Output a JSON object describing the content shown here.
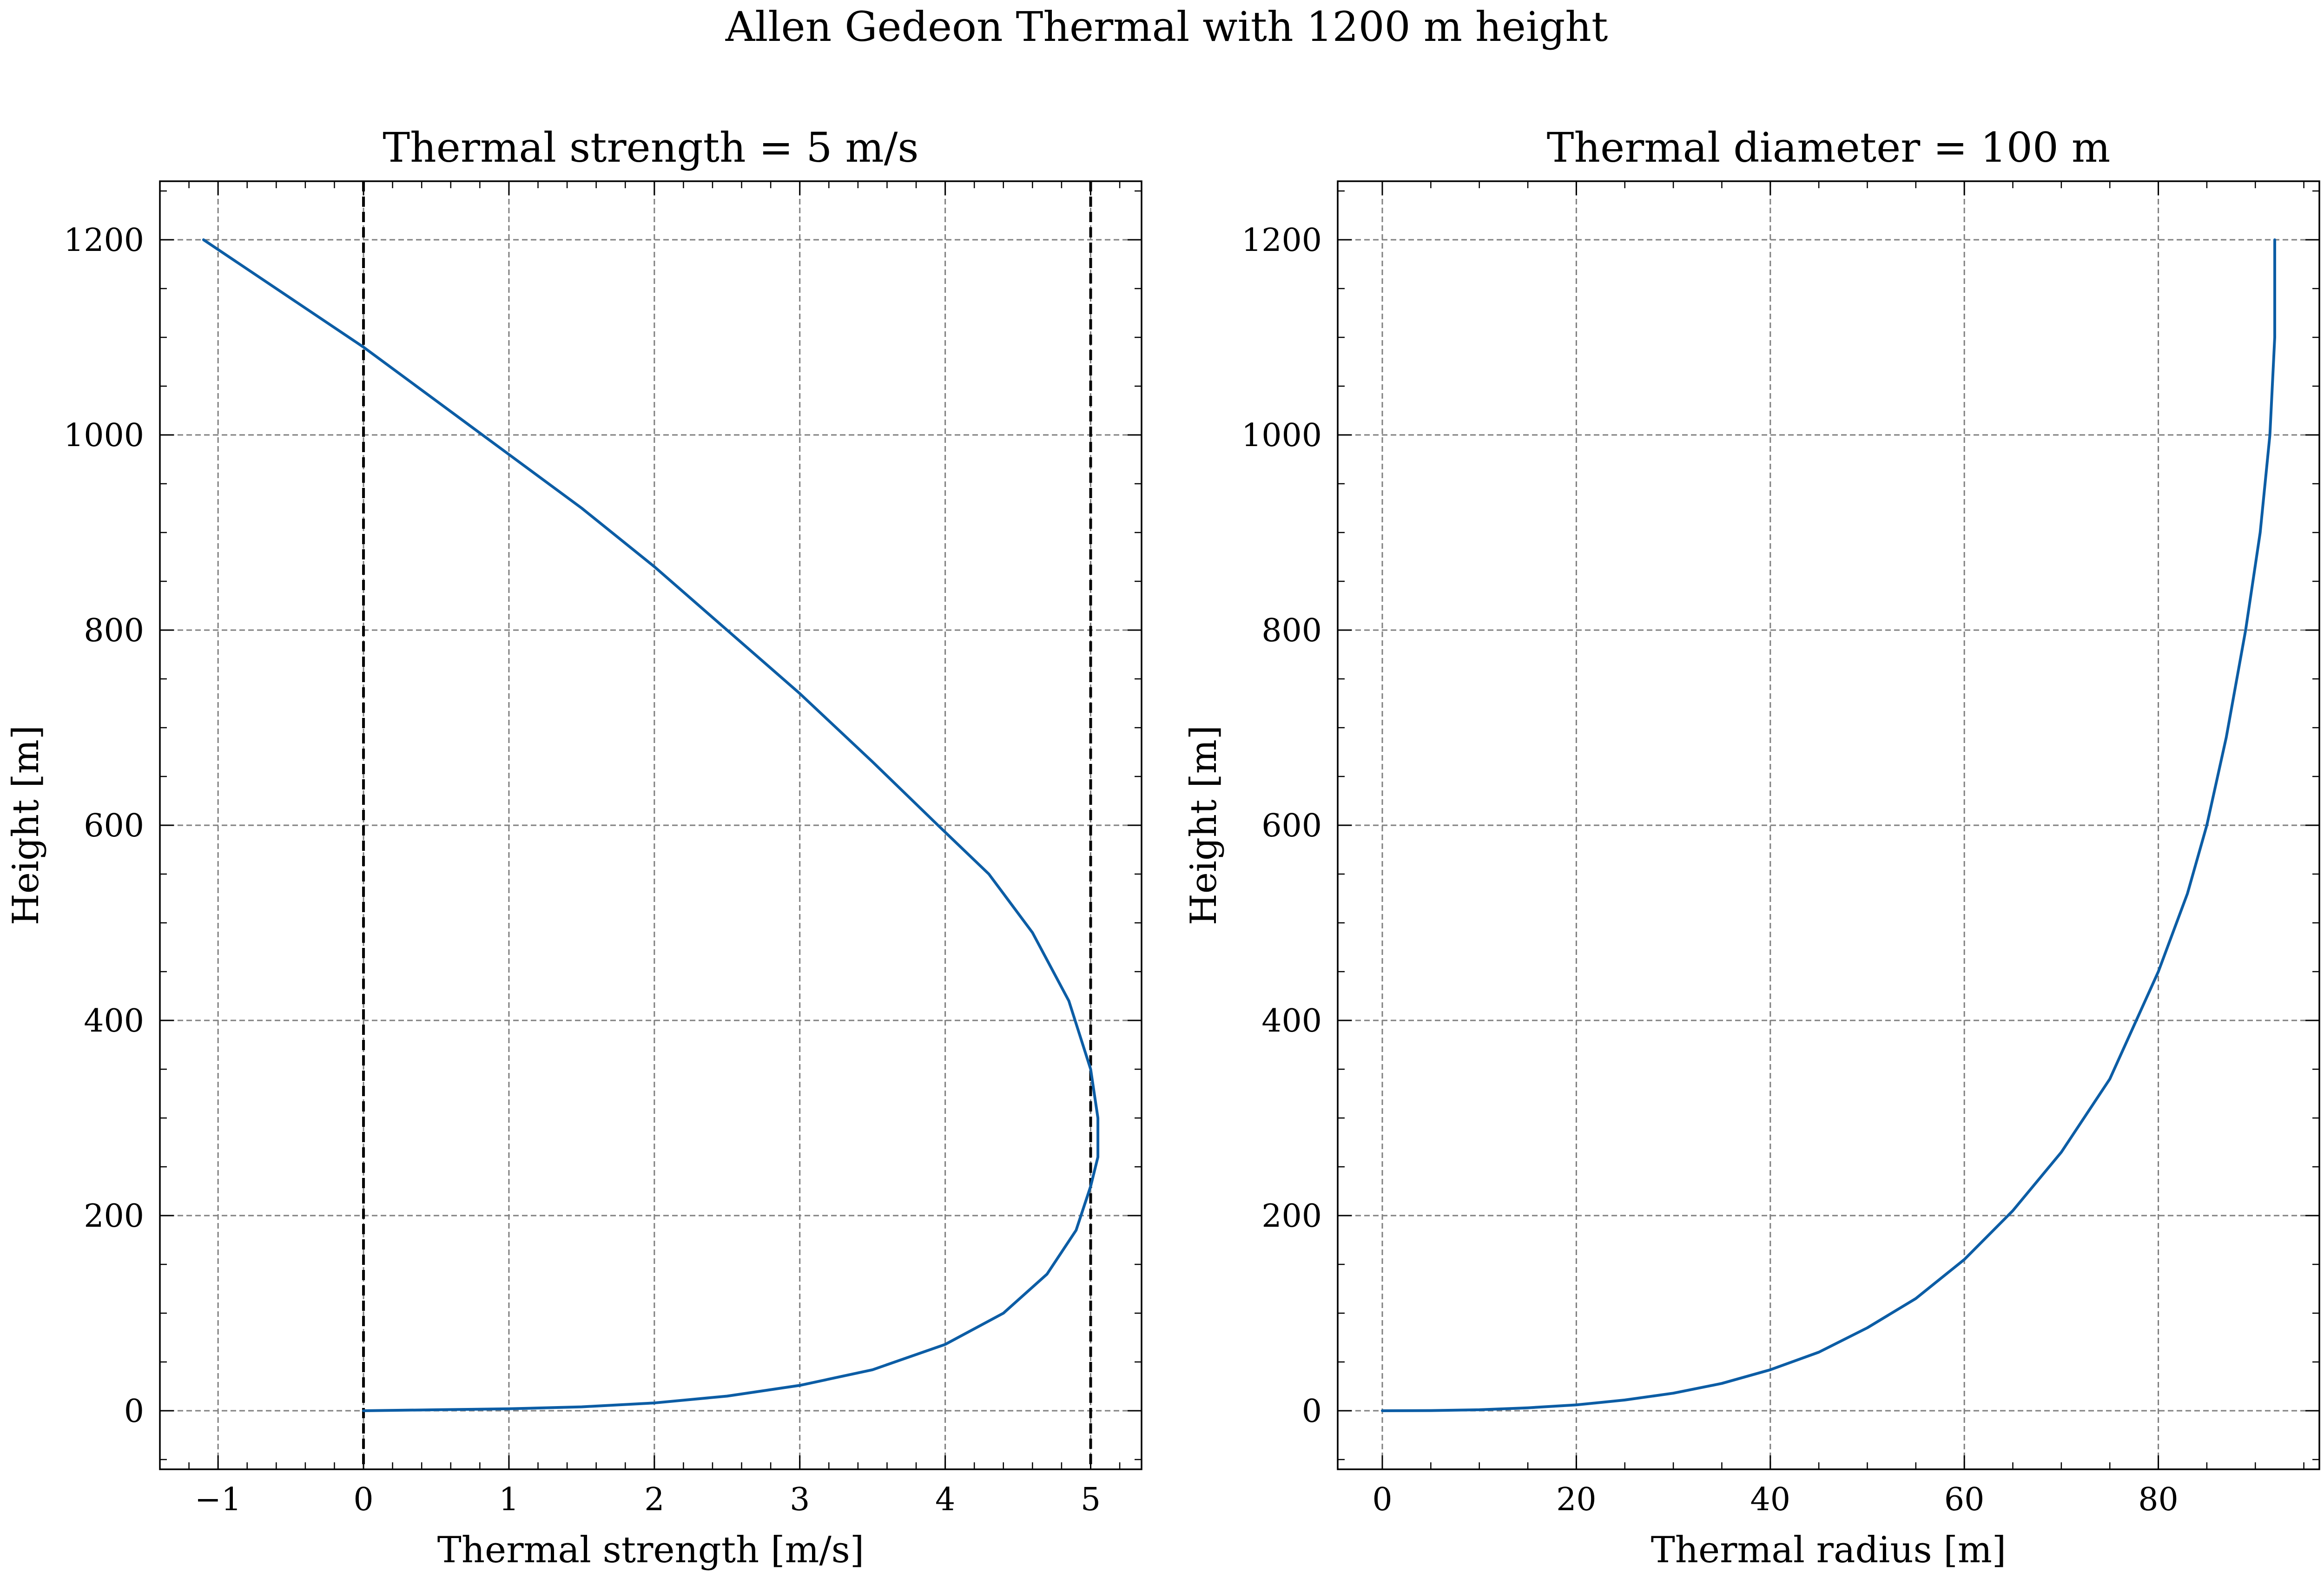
{
  "suptitle": "Allen Gedeon Thermal with 1200 m height",
  "colors": {
    "line": "#0C5DA5",
    "grid": "#808080",
    "reference": "#000000"
  },
  "chart_data": [
    {
      "type": "line",
      "title": "Thermal strength = 5 m/s",
      "xlabel": "Thermal strength [m/s]",
      "ylabel": "Height [m]",
      "xlim": [
        -1.4,
        5.35
      ],
      "ylim": [
        -60,
        1260
      ],
      "xticks": [
        -1,
        0,
        1,
        2,
        3,
        4,
        5
      ],
      "xtick_labels": [
        "−1",
        "0",
        "1",
        "2",
        "3",
        "4",
        "5"
      ],
      "yticks": [
        0,
        200,
        400,
        600,
        800,
        1000,
        1200
      ],
      "ytick_labels": [
        "0",
        "200",
        "400",
        "600",
        "800",
        "1000",
        "1200"
      ],
      "grid": true,
      "reference_lines_x": [
        0,
        5
      ],
      "series": [
        {
          "x": [
            0,
            0.5,
            1.0,
            1.5,
            2.0,
            2.5,
            3.0,
            3.5,
            4.0,
            4.4,
            4.7,
            4.9,
            5.0,
            5.05,
            5.05,
            5.0,
            4.85,
            4.6,
            4.3,
            3.95,
            3.5,
            3.0,
            2.5,
            2.0,
            1.5,
            1.0,
            0.5,
            0,
            -0.5,
            -1.1
          ],
          "y": [
            0,
            1,
            2,
            4,
            8,
            15,
            26,
            42,
            68,
            100,
            140,
            185,
            230,
            260,
            300,
            350,
            420,
            490,
            550,
            600,
            665,
            735,
            800,
            865,
            925,
            980,
            1035,
            1090,
            1140,
            1200
          ]
        }
      ]
    },
    {
      "type": "line",
      "title": "Thermal diameter = 100 m",
      "xlabel": "Thermal radius [m]",
      "ylabel": "Height [m]",
      "xlim": [
        -4.6,
        96.6
      ],
      "ylim": [
        -60,
        1260
      ],
      "xticks": [
        0,
        20,
        40,
        60,
        80
      ],
      "xtick_labels": [
        "0",
        "20",
        "40",
        "60",
        "80"
      ],
      "yticks": [
        0,
        200,
        400,
        600,
        800,
        1000,
        1200
      ],
      "ytick_labels": [
        "0",
        "200",
        "400",
        "600",
        "800",
        "1000",
        "1200"
      ],
      "grid": true,
      "reference_lines_x": [],
      "series": [
        {
          "x": [
            0,
            5,
            10,
            15,
            20,
            25,
            30,
            35,
            40,
            45,
            50,
            55,
            60,
            65,
            70,
            75,
            80,
            83,
            85,
            87,
            89,
            90.5,
            91.5,
            92,
            92
          ],
          "y": [
            0,
            0.2,
            1,
            3,
            6,
            11,
            18,
            28,
            42,
            60,
            85,
            115,
            155,
            205,
            265,
            340,
            450,
            530,
            600,
            690,
            800,
            900,
            1000,
            1100,
            1200
          ]
        }
      ]
    }
  ]
}
